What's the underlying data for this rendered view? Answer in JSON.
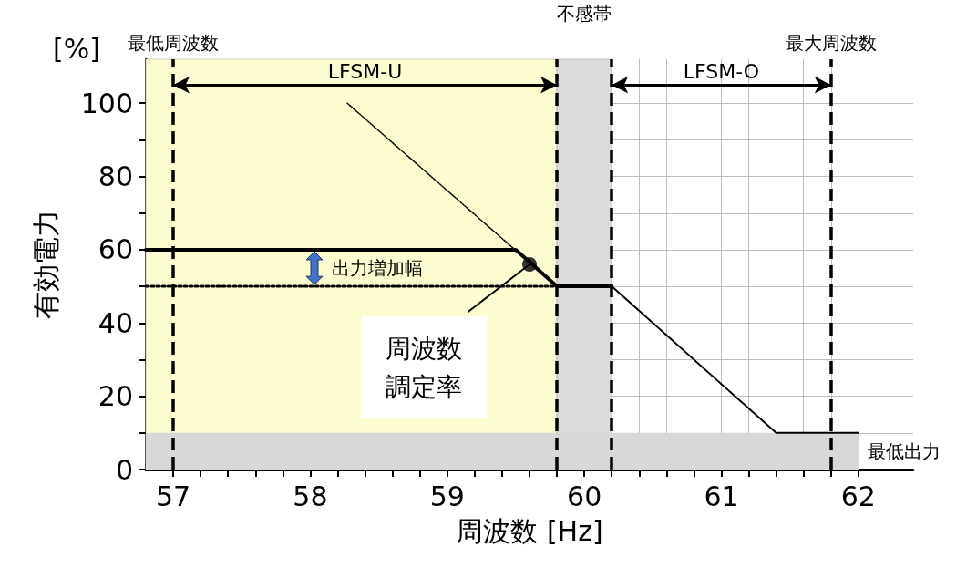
{
  "chart_data": {
    "type": "line",
    "xlabel": "周波数 [Hz]",
    "ylabel": "有効電力",
    "xlim": [
      56.8,
      62.4
    ],
    "ylim": [
      0,
      112
    ],
    "xticks": [
      57,
      {
        "value": 57.2,
        "label": null
      },
      {
        "value": 57.4,
        "label": null
      },
      {
        "value": 57.6,
        "label": null
      },
      {
        "value": 57.8,
        "label": null
      },
      58,
      {
        "value": 58.2,
        "label": null
      },
      {
        "value": 58.4,
        "label": null
      },
      {
        "value": 58.6,
        "label": null
      },
      {
        "value": 58.8,
        "label": null
      },
      59,
      {
        "value": 59.2,
        "label": null
      },
      {
        "value": 59.4,
        "label": null
      },
      {
        "value": 59.6,
        "label": null
      },
      {
        "value": 59.8,
        "label": null
      },
      60,
      {
        "value": 60.2,
        "label": null
      },
      {
        "value": 60.4,
        "label": null
      },
      {
        "value": 60.6,
        "label": null
      },
      {
        "value": 60.8,
        "label": null
      },
      61,
      {
        "value": 61.2,
        "label": null
      },
      {
        "value": 61.4,
        "label": null
      },
      {
        "value": 61.6,
        "label": null
      },
      {
        "value": 61.8,
        "label": null
      },
      62
    ],
    "yticks": [
      0,
      {
        "value": 10,
        "label": null
      },
      20,
      {
        "value": 30,
        "label": null
      },
      40,
      {
        "value": 50,
        "label": null
      },
      60,
      {
        "value": 70,
        "label": null
      },
      80,
      {
        "value": 90,
        "label": null
      },
      100
    ],
    "grid": true,
    "marker": "none",
    "series": [
      {
        "color": "#000000",
        "x": [
          56.8,
          59.5,
          59.8,
          60.2
        ],
        "values": [
          60,
          60,
          50,
          50
        ]
      },
      {
        "color": "#000000",
        "x": [
          60.2,
          61.4,
          62
        ],
        "values": [
          50,
          10,
          10
        ]
      },
      {
        "color": "#000000",
        "x": [
          58.27,
          59.8
        ],
        "values": [
          100,
          50
        ],
        "line_style": "dotted"
      },
      {
        "color": "#000000",
        "x": [
          56.8,
          59.8
        ],
        "values": [
          50,
          50
        ],
        "line_style": "dotted"
      },
      {
        "type": "scatter",
        "color": "#000000",
        "marker": "circle",
        "x": [
          59.6
        ],
        "values": [
          56
        ]
      }
    ],
    "ref_lines": [
      {
        "axis": "x",
        "value": 57,
        "label": "最低周波数",
        "line_style": "dashed"
      },
      {
        "axis": "x",
        "value": 59.8,
        "label": null,
        "line_style": "dashed"
      },
      {
        "axis": "x",
        "value": 60.2,
        "label": null,
        "line_style": "dashed"
      },
      {
        "axis": "x",
        "value": 61.8,
        "label": "最大周波数",
        "line_style": "dashed"
      }
    ],
    "bands": [
      {
        "axis": "x",
        "from": 56.8,
        "to": 59.8,
        "label": null,
        "color": "#fdfbd0"
      },
      {
        "axis": "x",
        "from": 59.8,
        "to": 60.2,
        "label": "不感帯",
        "color": "#dcdcdc"
      },
      {
        "axis": "y",
        "from": 0,
        "to": 10,
        "label": "最低出力",
        "color": "#d8d8d8"
      }
    ],
    "annotations": [
      "[%]",
      "LFSM-U",
      "LFSM-O",
      "出力増加幅",
      {
        "text": "周波数調定率",
        "x": 59.6,
        "y": 56
      }
    ]
  }
}
